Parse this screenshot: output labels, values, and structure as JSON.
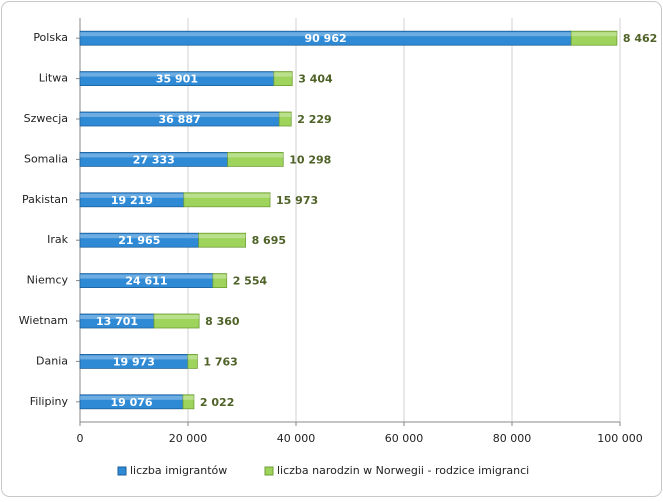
{
  "chart_data": {
    "type": "stacked-bar-horizontal",
    "categories": [
      "Polska",
      "Litwa",
      "Szwecja",
      "Somalia",
      "Pakistan",
      "Irak",
      "Niemcy",
      "Wietnam",
      "Dania",
      "Filipiny"
    ],
    "series": [
      {
        "name": "liczba imigrantów",
        "color": "#2f8ad6",
        "values": [
          90962,
          35901,
          36887,
          27333,
          19219,
          21965,
          24611,
          13701,
          19973,
          19076
        ],
        "value_labels": [
          "90 962",
          "35 901",
          "36 887",
          "27 333",
          "19 219",
          "21 965",
          "24 611",
          "13 701",
          "19 973",
          "19 076"
        ]
      },
      {
        "name": "liczba narodzin w Norwegii - rodzice imigranci",
        "color": "#9ed35c",
        "values": [
          8462,
          3404,
          2229,
          10298,
          15973,
          8695,
          2554,
          8360,
          1763,
          2022
        ],
        "value_labels": [
          "8 462",
          "3 404",
          "2 229",
          "10 298",
          "15 973",
          "8 695",
          "2 554",
          "8 360",
          "1 763",
          "2 022"
        ]
      }
    ],
    "xlim": [
      0,
      100000
    ],
    "xticks": [
      0,
      {
        "value": 20000,
        "label": "20 000"
      },
      {
        "value": 40000,
        "label": "40 000"
      },
      {
        "value": 60000,
        "label": "60 000"
      },
      {
        "value": 80000,
        "label": "80 000"
      },
      {
        "value": 100000,
        "label": "100 000"
      }
    ],
    "grid": true,
    "legend": "bottom"
  }
}
